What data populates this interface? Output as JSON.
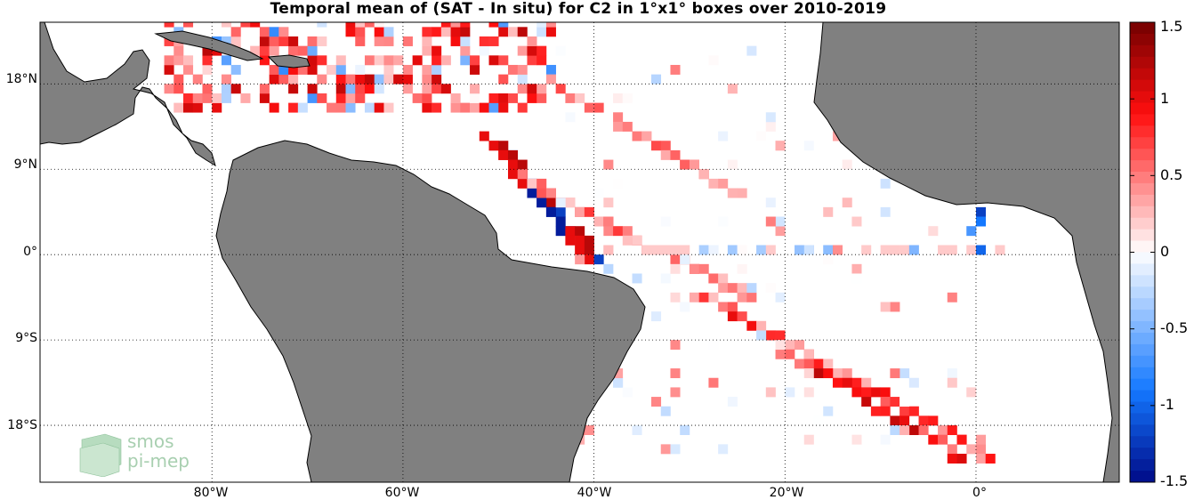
{
  "title": "Temporal mean of (SAT - In situ) for C2 in 1°x1° boxes over 2010-2019",
  "map": {
    "lon_range": [
      -98,
      15
    ],
    "lat_range": [
      -24,
      24.5
    ],
    "lat_ticks": [
      {
        "value": 18,
        "label": "18°N"
      },
      {
        "value": 9,
        "label": "9°N"
      },
      {
        "value": 0,
        "label": "0°"
      },
      {
        "value": -9,
        "label": "9°S"
      },
      {
        "value": -18,
        "label": "18°S"
      }
    ],
    "lon_ticks": [
      {
        "value": -80,
        "label": "80°W"
      },
      {
        "value": -60,
        "label": "60°W"
      },
      {
        "value": -40,
        "label": "40°W"
      },
      {
        "value": -20,
        "label": "20°W"
      },
      {
        "value": 0,
        "label": "0°"
      }
    ],
    "land_color": "#808080",
    "colormap": "red-white-blue diverging"
  },
  "colorbar": {
    "range": [
      -1.5,
      1.5
    ],
    "ticks": [
      {
        "value": 1.5,
        "label": "1.5"
      },
      {
        "value": 1,
        "label": "1"
      },
      {
        "value": 0.5,
        "label": "0.5"
      },
      {
        "value": 0,
        "label": "0"
      },
      {
        "value": -0.5,
        "label": "-0.5"
      },
      {
        "value": -1,
        "label": "-1"
      },
      {
        "value": -1.5,
        "label": "-1.5"
      }
    ]
  },
  "logo": {
    "line1": "smos",
    "line2": "pi-mep"
  }
}
